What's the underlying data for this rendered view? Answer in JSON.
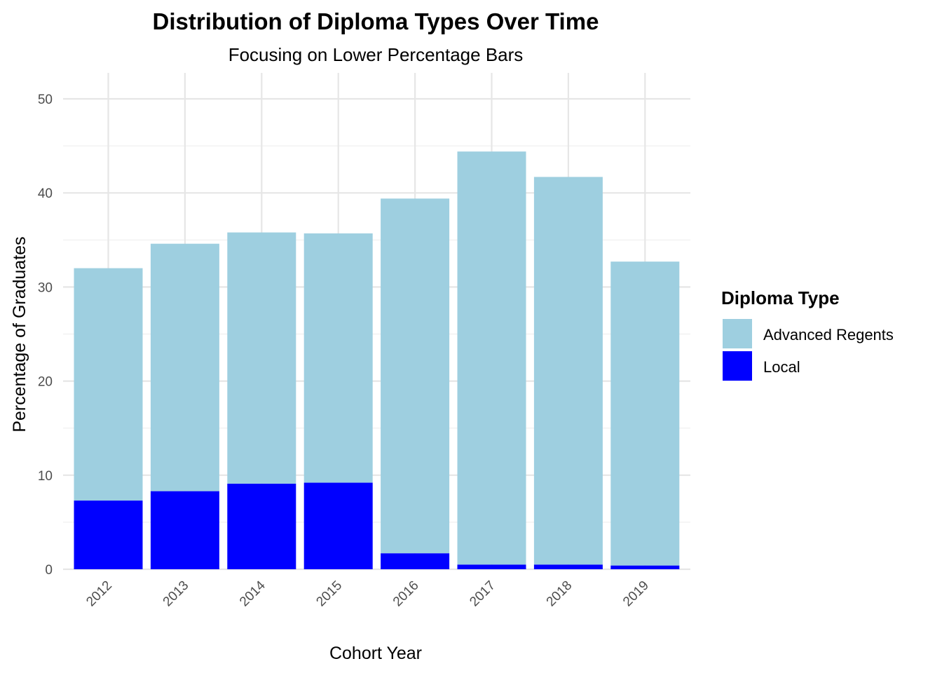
{
  "chart_data": {
    "type": "bar",
    "stacked": true,
    "title": "Distribution of Diploma Types Over Time",
    "subtitle": "Focusing on Lower Percentage Bars",
    "xlabel": "Cohort Year",
    "ylabel": "Percentage of Graduates",
    "categories": [
      "2012",
      "2013",
      "2014",
      "2015",
      "2016",
      "2017",
      "2018",
      "2019"
    ],
    "ylim": [
      0,
      52
    ],
    "yticks": [
      0,
      10,
      20,
      30,
      40,
      50
    ],
    "grid": true,
    "series": [
      {
        "name": "Local",
        "color": "#0000ff",
        "values": [
          7.3,
          8.3,
          9.1,
          9.2,
          1.7,
          0.5,
          0.5,
          0.4
        ]
      },
      {
        "name": "Advanced Regents",
        "color": "#9ecfe0",
        "values": [
          24.7,
          26.3,
          26.7,
          26.5,
          37.7,
          43.9,
          41.2,
          32.3
        ]
      }
    ],
    "legend": {
      "title": "Diploma Type",
      "position": "right",
      "entries": [
        {
          "label": "Advanced Regents",
          "color": "#9ecfe0"
        },
        {
          "label": "Local",
          "color": "#0000ff"
        }
      ]
    }
  }
}
